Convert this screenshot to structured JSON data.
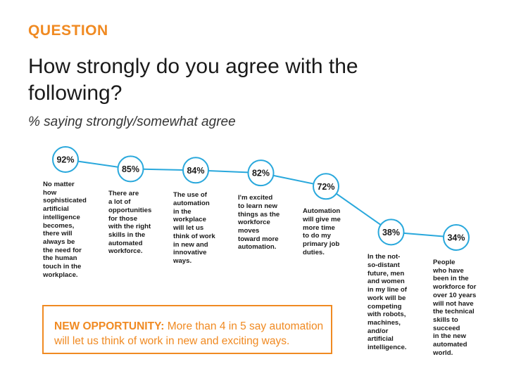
{
  "header": {
    "kicker": "QUESTION",
    "title": "How strongly do you agree with the following?",
    "subtitle": "% saying strongly/somewhat agree"
  },
  "colors": {
    "accent": "#f08a22",
    "line": "#29a8dc",
    "text": "#1a1a1a"
  },
  "chart_data": {
    "type": "line",
    "title": "How strongly do you agree with the following?",
    "subtitle": "% saying strongly/somewhat agree",
    "unit": "%",
    "grid": false,
    "legend": "none",
    "ylim": [
      30,
      95
    ],
    "categories": [
      "No matter how sophisticated artificial intelligence becomes, there will always be the need for the human touch in the workplace.",
      "There are a lot of opportunities for those with the right skills in the automated workforce.",
      "The use of automation in the workplace will let us think of work in new and innovative ways.",
      "I'm excited to learn new things as the workforce moves toward more automation.",
      "Automation will give me more time to do my primary job duties.",
      "In the not-so-distant future, men and women in my line of work will be competing with robots, machines, and/or artificial intelligence.",
      "People who have been in the workforce for over 10 years will not have the technical skills to succeed in the new automated world."
    ],
    "values": [
      92,
      85,
      84,
      82,
      72,
      38,
      34
    ],
    "value_labels": [
      "92%",
      "85%",
      "84%",
      "82%",
      "72%",
      "38%",
      "34%"
    ]
  },
  "statements": [
    [
      "No matter",
      "how",
      "sophisticated",
      "artificial",
      "intelligence",
      "becomes,",
      "there will",
      "always be",
      "the need for",
      "the human",
      "touch in the",
      "workplace."
    ],
    [
      "There are",
      "a lot of",
      "opportunities",
      "for those",
      "with the right",
      "skills in the",
      "automated",
      "workforce."
    ],
    [
      "The use of",
      "automation",
      "in the",
      "workplace",
      "will let us",
      "think of work",
      "in new and",
      "innovative",
      "ways."
    ],
    [
      "I'm excited",
      "to learn new",
      "things as the",
      "workforce",
      "moves",
      "toward more",
      "automation."
    ],
    [
      "Automation",
      "will give me",
      "more time",
      "to do my",
      "primary job",
      "duties."
    ],
    [
      "In the not-",
      "so-distant",
      "future, men",
      "and women",
      "in my line of",
      "work will be",
      "competing",
      "with robots,",
      "machines,",
      "and/or",
      "artificial",
      "intelligence."
    ],
    [
      "People",
      "who have",
      "been in the",
      "workforce for",
      "over 10 years",
      "will not have",
      "the technical",
      "skills to",
      "succeed",
      "in the new",
      "automated",
      "world."
    ]
  ],
  "callout": {
    "lead": "NEW OPPORTUNITY:",
    "text": " More than 4 in 5 say automation will let us think of work in new and exciting ways."
  }
}
